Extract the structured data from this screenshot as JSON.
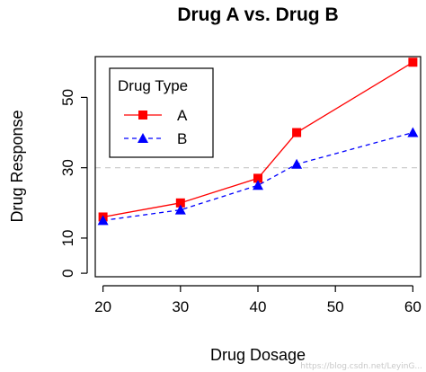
{
  "chart_data": {
    "type": "line",
    "title": "Drug A vs. Drug B",
    "xlabel": "Drug Dosage",
    "ylabel": "Drug Response",
    "x_ticks": [
      20,
      30,
      40,
      50,
      60
    ],
    "y_ticks": [
      0,
      10,
      30,
      50
    ],
    "xlim": [
      19,
      61
    ],
    "ylim": [
      -1,
      61.6
    ],
    "reference_line": {
      "y": 30,
      "style": "dashed",
      "color": "#c8c8c8"
    },
    "legend": {
      "title": "Drug Type",
      "position": "top-left",
      "boxed": true
    },
    "series": [
      {
        "name": "A",
        "x": [
          20,
          30,
          40,
          45,
          60
        ],
        "y": [
          16,
          20,
          27,
          40,
          60
        ],
        "color": "#ff0000",
        "line": "solid",
        "marker": "square"
      },
      {
        "name": "B",
        "x": [
          20,
          30,
          40,
          45,
          60
        ],
        "y": [
          15,
          18,
          25,
          31,
          40
        ],
        "color": "#0000ff",
        "line": "dashed",
        "marker": "triangle"
      }
    ]
  },
  "watermark": "https://blog.csdn.net/LeyinG..."
}
